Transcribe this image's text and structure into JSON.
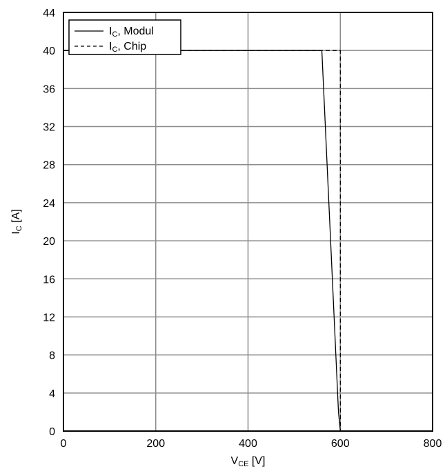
{
  "chart_data": {
    "type": "line",
    "xlabel_main": "V",
    "xlabel_sub": "CE",
    "xlabel_unit": " [V]",
    "ylabel_main": "I",
    "ylabel_sub": "C",
    "ylabel_unit": " [A]",
    "xlim": [
      0,
      800
    ],
    "ylim": [
      0,
      44
    ],
    "xticks": [
      0,
      200,
      400,
      600,
      800
    ],
    "yticks": [
      0,
      4,
      8,
      12,
      16,
      20,
      24,
      28,
      32,
      36,
      40,
      44
    ],
    "grid": true,
    "legend_position": "top-left",
    "series": [
      {
        "name_main": "I",
        "name_sub": "C",
        "name_rest": ", Modul",
        "style": "solid",
        "color": "#000000",
        "x": [
          0,
          560,
          596,
          600
        ],
        "y": [
          40,
          40,
          2,
          0
        ]
      },
      {
        "name_main": "I",
        "name_sub": "C",
        "name_rest": ", Chip",
        "style": "dashed",
        "color": "#000000",
        "x": [
          0,
          600,
          600
        ],
        "y": [
          40,
          40,
          0
        ]
      }
    ]
  }
}
